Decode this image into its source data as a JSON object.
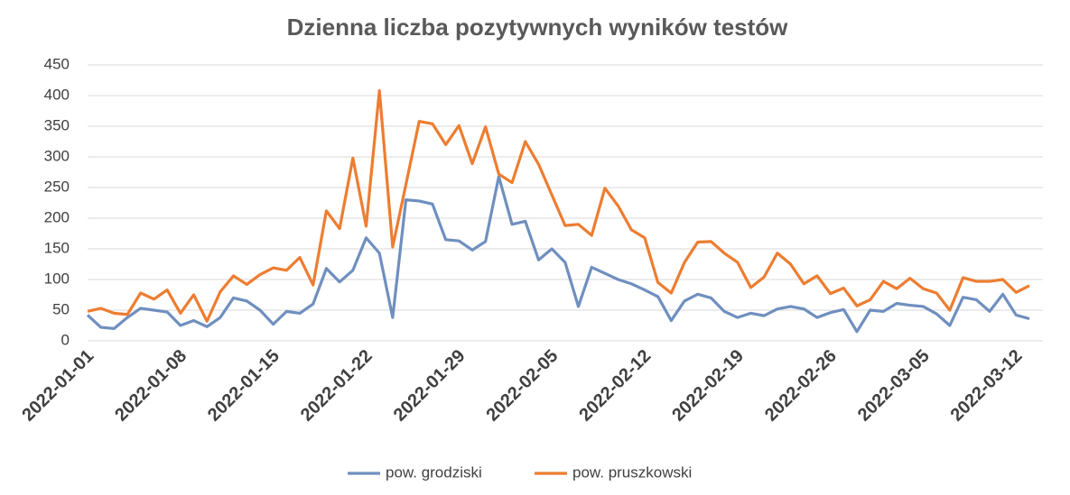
{
  "chart_data": {
    "type": "line",
    "title": "Dzienna liczba pozytywnych wyników testów",
    "categories": [
      "2022-01-01",
      null,
      null,
      null,
      null,
      null,
      null,
      "2022-01-08",
      null,
      null,
      null,
      null,
      null,
      null,
      "2022-01-15",
      null,
      null,
      null,
      null,
      null,
      null,
      "2022-01-22",
      null,
      null,
      null,
      null,
      null,
      null,
      "2022-01-29",
      null,
      null,
      null,
      null,
      null,
      null,
      "2022-02-05",
      null,
      null,
      null,
      null,
      null,
      null,
      "2022-02-12",
      null,
      null,
      null,
      null,
      null,
      null,
      "2022-02-19",
      null,
      null,
      null,
      null,
      null,
      null,
      "2022-02-26",
      null,
      null,
      null,
      null,
      null,
      null,
      "2022-03-05",
      null,
      null,
      null,
      null,
      null,
      null,
      "2022-03-12",
      null
    ],
    "series": [
      {
        "name": "pow. grodziski",
        "color": "#6f8fbf",
        "values": [
          42,
          22,
          20,
          38,
          53,
          50,
          47,
          25,
          33,
          23,
          38,
          70,
          65,
          50,
          27,
          48,
          45,
          60,
          118,
          96,
          115,
          168,
          143,
          38,
          230,
          228,
          223,
          165,
          163,
          148,
          162,
          268,
          190,
          195,
          132,
          150,
          128,
          56,
          120,
          110,
          100,
          93,
          83,
          72,
          33,
          65,
          76,
          70,
          48,
          38,
          45,
          41,
          52,
          56,
          52,
          38,
          46,
          51,
          15,
          50,
          48,
          61,
          58,
          56,
          44,
          25,
          71,
          67,
          48,
          76,
          42,
          36
        ]
      },
      {
        "name": "pow. pruszkowski",
        "color": "#ed7d31",
        "values": [
          48,
          53,
          45,
          43,
          78,
          68,
          83,
          45,
          75,
          32,
          80,
          106,
          92,
          108,
          119,
          115,
          136,
          91,
          212,
          183,
          298,
          187,
          408,
          153,
          255,
          358,
          354,
          320,
          351,
          289,
          349,
          272,
          258,
          325,
          288,
          238,
          188,
          190,
          172,
          249,
          220,
          181,
          168,
          95,
          78,
          128,
          161,
          162,
          143,
          128,
          87,
          104,
          143,
          125,
          93,
          106,
          77,
          86,
          57,
          67,
          97,
          85,
          102,
          85,
          78,
          50,
          103,
          97,
          97,
          100,
          79,
          90
        ]
      }
    ],
    "ylim": [
      0,
      450
    ],
    "yticks": [
      0,
      50,
      100,
      150,
      200,
      250,
      300,
      350,
      400,
      450
    ],
    "grid": true,
    "legend": "bottom"
  }
}
